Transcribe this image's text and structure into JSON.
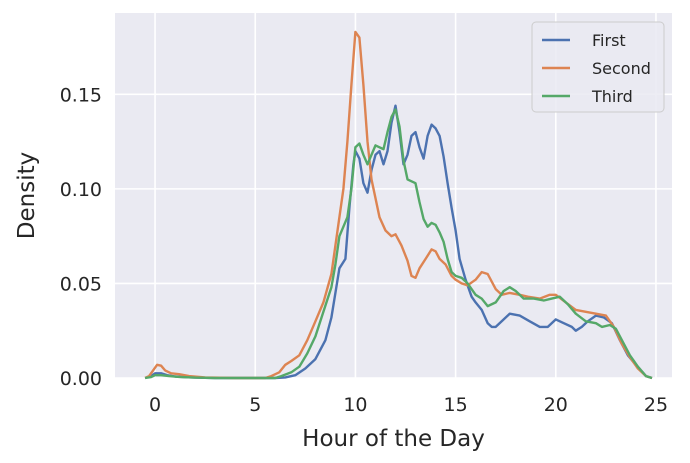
{
  "chart_data": {
    "type": "line",
    "title": "",
    "xlabel": "Hour of the Day",
    "ylabel": "Density",
    "xlim": [
      -2,
      25.8
    ],
    "ylim": [
      0,
      0.193
    ],
    "x_ticks": [
      0,
      5,
      10,
      15,
      20,
      25
    ],
    "y_ticks": [
      0.0,
      0.05,
      0.1,
      0.15
    ],
    "x_tick_labels": [
      "0",
      "5",
      "10",
      "15",
      "20",
      "25"
    ],
    "y_tick_labels": [
      "0.00",
      "0.05",
      "0.10",
      "0.15"
    ],
    "grid": true,
    "legend_position": "top-right",
    "series": [
      {
        "name": "First",
        "color": "#4c72b0",
        "points": [
          [
            -0.5,
            0
          ],
          [
            -0.2,
            0.001
          ],
          [
            0,
            0.0025
          ],
          [
            0.3,
            0.0025
          ],
          [
            0.6,
            0.0015
          ],
          [
            1,
            0.0008
          ],
          [
            1.5,
            0.0004
          ],
          [
            2,
            0.0002
          ],
          [
            3,
            0
          ],
          [
            6,
            0
          ],
          [
            6.5,
            0.0003
          ],
          [
            7,
            0.0015
          ],
          [
            7.5,
            0.005
          ],
          [
            8,
            0.01
          ],
          [
            8.5,
            0.02
          ],
          [
            8.8,
            0.032
          ],
          [
            9,
            0.045
          ],
          [
            9.2,
            0.058
          ],
          [
            9.5,
            0.063
          ],
          [
            9.7,
            0.09
          ],
          [
            9.9,
            0.113
          ],
          [
            10,
            0.12
          ],
          [
            10.2,
            0.116
          ],
          [
            10.4,
            0.103
          ],
          [
            10.6,
            0.098
          ],
          [
            10.8,
            0.11
          ],
          [
            11,
            0.118
          ],
          [
            11.2,
            0.12
          ],
          [
            11.4,
            0.113
          ],
          [
            11.6,
            0.12
          ],
          [
            11.8,
            0.135
          ],
          [
            12,
            0.144
          ],
          [
            12.2,
            0.13
          ],
          [
            12.4,
            0.113
          ],
          [
            12.6,
            0.118
          ],
          [
            12.8,
            0.128
          ],
          [
            13,
            0.13
          ],
          [
            13.2,
            0.122
          ],
          [
            13.4,
            0.116
          ],
          [
            13.6,
            0.128
          ],
          [
            13.8,
            0.134
          ],
          [
            14,
            0.132
          ],
          [
            14.2,
            0.128
          ],
          [
            14.4,
            0.117
          ],
          [
            14.6,
            0.103
          ],
          [
            14.8,
            0.09
          ],
          [
            15,
            0.078
          ],
          [
            15.2,
            0.063
          ],
          [
            15.5,
            0.052
          ],
          [
            15.8,
            0.043
          ],
          [
            16,
            0.04
          ],
          [
            16.3,
            0.036
          ],
          [
            16.6,
            0.029
          ],
          [
            16.8,
            0.027
          ],
          [
            17,
            0.027
          ],
          [
            17.3,
            0.03
          ],
          [
            17.7,
            0.034
          ],
          [
            18.2,
            0.033
          ],
          [
            18.7,
            0.03
          ],
          [
            19.2,
            0.027
          ],
          [
            19.6,
            0.027
          ],
          [
            20,
            0.031
          ],
          [
            20.4,
            0.029
          ],
          [
            20.8,
            0.027
          ],
          [
            21,
            0.025
          ],
          [
            21.3,
            0.027
          ],
          [
            21.6,
            0.03
          ],
          [
            22,
            0.033
          ],
          [
            22.4,
            0.032
          ],
          [
            22.8,
            0.029
          ],
          [
            23.2,
            0.02
          ],
          [
            23.6,
            0.012
          ],
          [
            24,
            0.007
          ],
          [
            24.5,
            0.001
          ],
          [
            24.8,
            0
          ]
        ]
      },
      {
        "name": "Second",
        "color": "#dd8452",
        "points": [
          [
            -0.5,
            0
          ],
          [
            -0.3,
            0.001
          ],
          [
            -0.1,
            0.004
          ],
          [
            0.1,
            0.007
          ],
          [
            0.3,
            0.0065
          ],
          [
            0.5,
            0.004
          ],
          [
            0.8,
            0.0025
          ],
          [
            1.2,
            0.002
          ],
          [
            1.7,
            0.001
          ],
          [
            2.5,
            0.0003
          ],
          [
            4,
            0
          ],
          [
            5.5,
            0
          ],
          [
            5.8,
            0.001
          ],
          [
            6.2,
            0.003
          ],
          [
            6.5,
            0.007
          ],
          [
            6.8,
            0.009
          ],
          [
            7.2,
            0.012
          ],
          [
            7.6,
            0.02
          ],
          [
            8,
            0.03
          ],
          [
            8.4,
            0.04
          ],
          [
            8.8,
            0.055
          ],
          [
            9,
            0.07
          ],
          [
            9.2,
            0.085
          ],
          [
            9.4,
            0.1
          ],
          [
            9.6,
            0.125
          ],
          [
            9.8,
            0.155
          ],
          [
            10,
            0.183
          ],
          [
            10.2,
            0.18
          ],
          [
            10.4,
            0.155
          ],
          [
            10.6,
            0.125
          ],
          [
            10.8,
            0.105
          ],
          [
            11,
            0.095
          ],
          [
            11.2,
            0.085
          ],
          [
            11.5,
            0.078
          ],
          [
            11.8,
            0.075
          ],
          [
            12,
            0.076
          ],
          [
            12.3,
            0.07
          ],
          [
            12.6,
            0.062
          ],
          [
            12.8,
            0.054
          ],
          [
            13,
            0.053
          ],
          [
            13.2,
            0.058
          ],
          [
            13.5,
            0.063
          ],
          [
            13.8,
            0.068
          ],
          [
            14,
            0.067
          ],
          [
            14.2,
            0.063
          ],
          [
            14.5,
            0.06
          ],
          [
            14.8,
            0.054
          ],
          [
            15,
            0.052
          ],
          [
            15.3,
            0.05
          ],
          [
            15.6,
            0.049
          ],
          [
            16,
            0.052
          ],
          [
            16.3,
            0.056
          ],
          [
            16.6,
            0.055
          ],
          [
            17,
            0.047
          ],
          [
            17.3,
            0.044
          ],
          [
            17.7,
            0.045
          ],
          [
            18.2,
            0.044
          ],
          [
            18.6,
            0.043
          ],
          [
            19.2,
            0.042
          ],
          [
            19.7,
            0.044
          ],
          [
            20,
            0.044
          ],
          [
            20.5,
            0.04
          ],
          [
            21,
            0.036
          ],
          [
            21.5,
            0.035
          ],
          [
            22,
            0.034
          ],
          [
            22.5,
            0.033
          ],
          [
            22.9,
            0.027
          ],
          [
            23.3,
            0.018
          ],
          [
            23.7,
            0.011
          ],
          [
            24.1,
            0.005
          ],
          [
            24.5,
            0.001
          ],
          [
            24.8,
            0
          ]
        ]
      },
      {
        "name": "Third",
        "color": "#55a868",
        "points": [
          [
            -0.5,
            0
          ],
          [
            -0.2,
            0.0005
          ],
          [
            0,
            0.0015
          ],
          [
            0.3,
            0.0015
          ],
          [
            0.7,
            0.001
          ],
          [
            1.2,
            0.0006
          ],
          [
            2,
            0.0002
          ],
          [
            3,
            0
          ],
          [
            6,
            0
          ],
          [
            6.3,
            0.001
          ],
          [
            6.8,
            0.003
          ],
          [
            7.2,
            0.006
          ],
          [
            7.6,
            0.013
          ],
          [
            8,
            0.022
          ],
          [
            8.4,
            0.035
          ],
          [
            8.8,
            0.048
          ],
          [
            9,
            0.06
          ],
          [
            9.2,
            0.075
          ],
          [
            9.4,
            0.08
          ],
          [
            9.6,
            0.085
          ],
          [
            9.8,
            0.1
          ],
          [
            10,
            0.122
          ],
          [
            10.2,
            0.124
          ],
          [
            10.4,
            0.118
          ],
          [
            10.6,
            0.113
          ],
          [
            10.8,
            0.118
          ],
          [
            11,
            0.123
          ],
          [
            11.2,
            0.122
          ],
          [
            11.4,
            0.121
          ],
          [
            11.6,
            0.13
          ],
          [
            11.8,
            0.138
          ],
          [
            12,
            0.142
          ],
          [
            12.2,
            0.133
          ],
          [
            12.4,
            0.115
          ],
          [
            12.6,
            0.105
          ],
          [
            12.8,
            0.104
          ],
          [
            13,
            0.103
          ],
          [
            13.2,
            0.093
          ],
          [
            13.4,
            0.084
          ],
          [
            13.6,
            0.08
          ],
          [
            13.8,
            0.082
          ],
          [
            14,
            0.081
          ],
          [
            14.2,
            0.077
          ],
          [
            14.4,
            0.072
          ],
          [
            14.6,
            0.063
          ],
          [
            14.8,
            0.056
          ],
          [
            15,
            0.054
          ],
          [
            15.3,
            0.053
          ],
          [
            15.6,
            0.05
          ],
          [
            16,
            0.044
          ],
          [
            16.3,
            0.042
          ],
          [
            16.6,
            0.038
          ],
          [
            17,
            0.04
          ],
          [
            17.4,
            0.046
          ],
          [
            17.7,
            0.048
          ],
          [
            18,
            0.046
          ],
          [
            18.4,
            0.042
          ],
          [
            18.9,
            0.042
          ],
          [
            19.4,
            0.041
          ],
          [
            19.8,
            0.042
          ],
          [
            20.2,
            0.043
          ],
          [
            20.6,
            0.039
          ],
          [
            21,
            0.034
          ],
          [
            21.5,
            0.03
          ],
          [
            22,
            0.029
          ],
          [
            22.3,
            0.027
          ],
          [
            22.7,
            0.028
          ],
          [
            23,
            0.026
          ],
          [
            23.3,
            0.02
          ],
          [
            23.7,
            0.012
          ],
          [
            24.1,
            0.006
          ],
          [
            24.5,
            0.001
          ],
          [
            24.8,
            0
          ]
        ]
      }
    ]
  }
}
